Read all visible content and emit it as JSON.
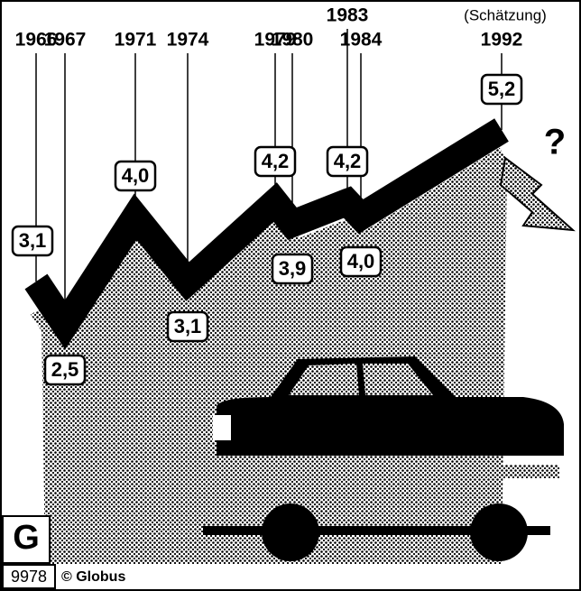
{
  "chart_data": {
    "type": "line",
    "categories": [
      "1966",
      "1967",
      "1971",
      "1974",
      "1979",
      "1980",
      "1983",
      "1984",
      "1992"
    ],
    "values": [
      3.1,
      2.5,
      4.0,
      3.1,
      4.2,
      3.9,
      4.2,
      4.0,
      5.2
    ],
    "value_labels": [
      "3,1",
      "2,5",
      "4,0",
      "3,1",
      "4,2",
      "3,9",
      "4,2",
      "4,0",
      "5,2"
    ],
    "color": "#000000",
    "annotations": [
      "(Schätzung)",
      "?"
    ],
    "source": {
      "number": "9978",
      "credit": "© Globus"
    }
  }
}
